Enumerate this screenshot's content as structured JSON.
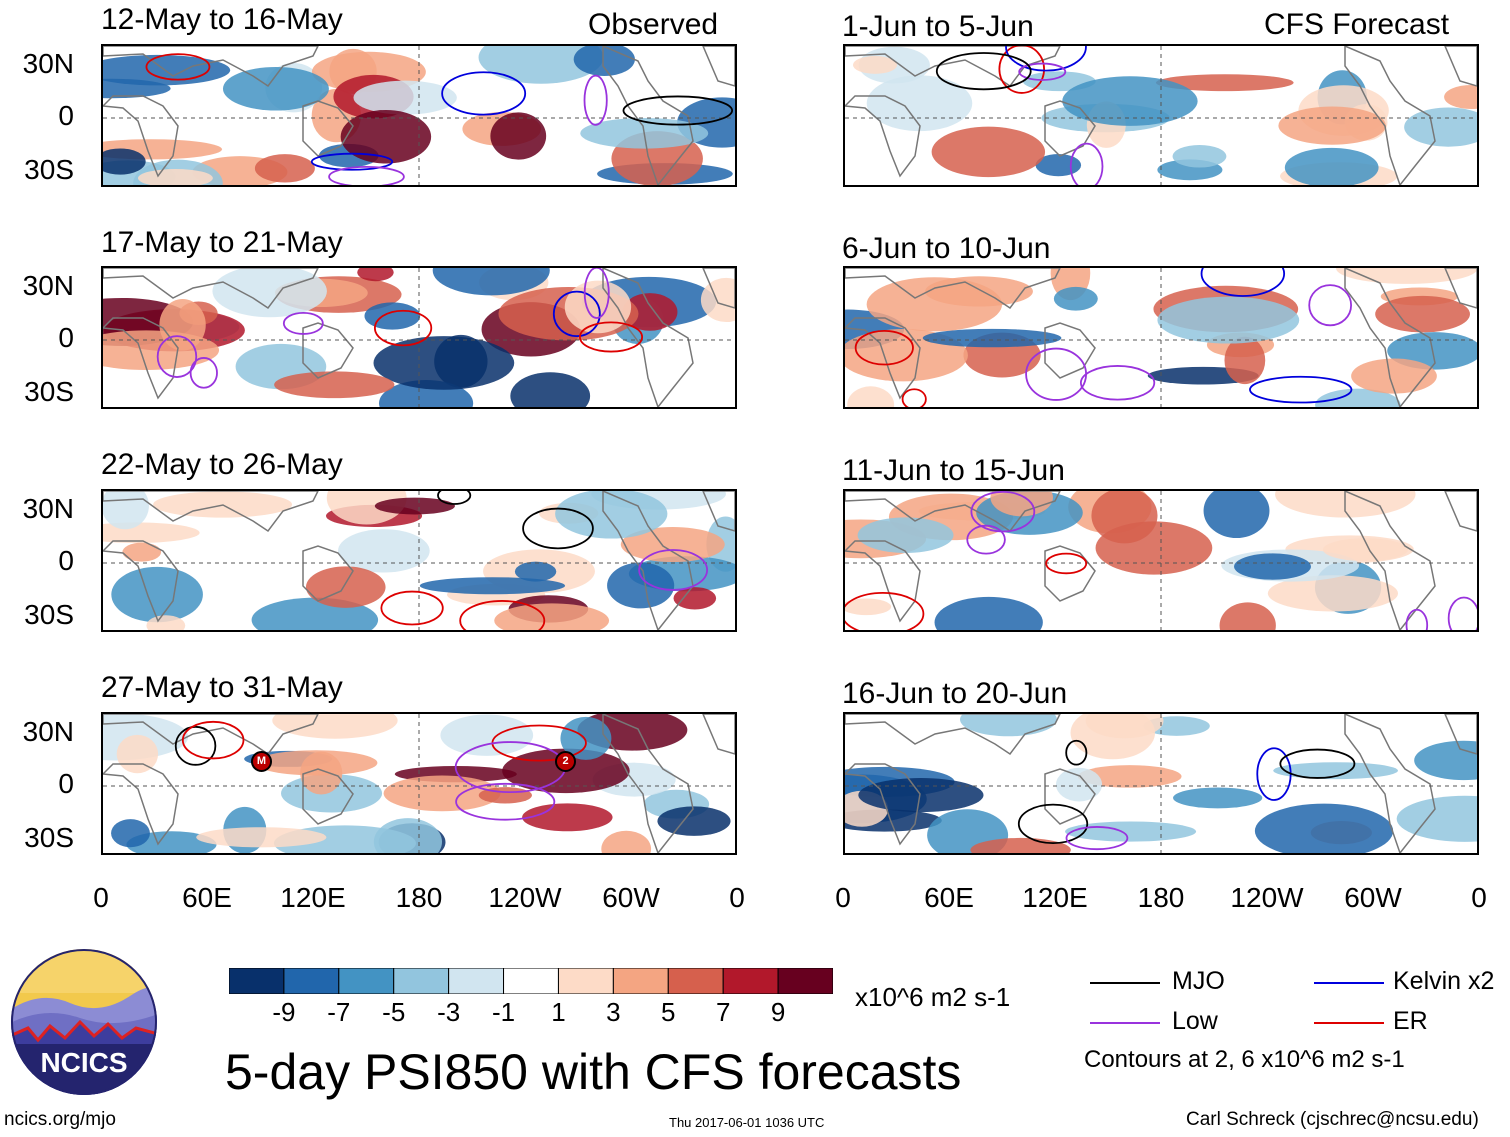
{
  "header": {
    "left_label": "Observed",
    "right_label": "CFS Forecast"
  },
  "chart_data": {
    "type": "map-panels",
    "title": "5-day PSI850 with CFS forecasts",
    "variable": "PSI850",
    "units": "x10^6 m2 s-1",
    "lat_ticks": [
      "30N",
      "0",
      "30S"
    ],
    "lon_ticks": [
      "0",
      "60E",
      "120E",
      "180",
      "120W",
      "60W",
      "0"
    ],
    "colorbar": {
      "tick_labels": [
        "-9",
        "-7",
        "-5",
        "-3",
        "-1",
        "1",
        "3",
        "5",
        "7",
        "9"
      ],
      "colors": [
        "#08306b",
        "#2166ac",
        "#4393c3",
        "#92c5de",
        "#d1e5f0",
        "#ffffff",
        "#fddbc7",
        "#f4a582",
        "#d6604d",
        "#b2182b",
        "#67001f"
      ]
    },
    "panels": [
      {
        "period": "12-May to 16-May",
        "type": "Observed"
      },
      {
        "period": "17-May to 21-May",
        "type": "Observed"
      },
      {
        "period": "22-May to 26-May",
        "type": "Observed"
      },
      {
        "period": "27-May to 31-May",
        "type": "Observed"
      },
      {
        "period": "1-Jun to 5-Jun",
        "type": "CFS Forecast"
      },
      {
        "period": "6-Jun to 10-Jun",
        "type": "CFS Forecast"
      },
      {
        "period": "11-Jun to 15-Jun",
        "type": "CFS Forecast"
      },
      {
        "period": "16-Jun to 20-Jun",
        "type": "CFS Forecast"
      }
    ],
    "storm_markers": [
      "M",
      "2"
    ],
    "legend": [
      {
        "label": "MJO",
        "color": "#000000"
      },
      {
        "label": "Kelvin x2",
        "color": "#0000dd"
      },
      {
        "label": "Low",
        "color": "#9933dd"
      },
      {
        "label": "ER",
        "color": "#dd0000"
      }
    ],
    "contour_note": "Contours at 2, 6 x10^6 m2 s-1"
  },
  "footer": {
    "logo_text": "NCICS",
    "url": "ncics.org/mjo",
    "timestamp": "Thu 2017-06-01 1036 UTC",
    "author": "Carl Schreck (cjschrec@ncsu.edu)"
  }
}
